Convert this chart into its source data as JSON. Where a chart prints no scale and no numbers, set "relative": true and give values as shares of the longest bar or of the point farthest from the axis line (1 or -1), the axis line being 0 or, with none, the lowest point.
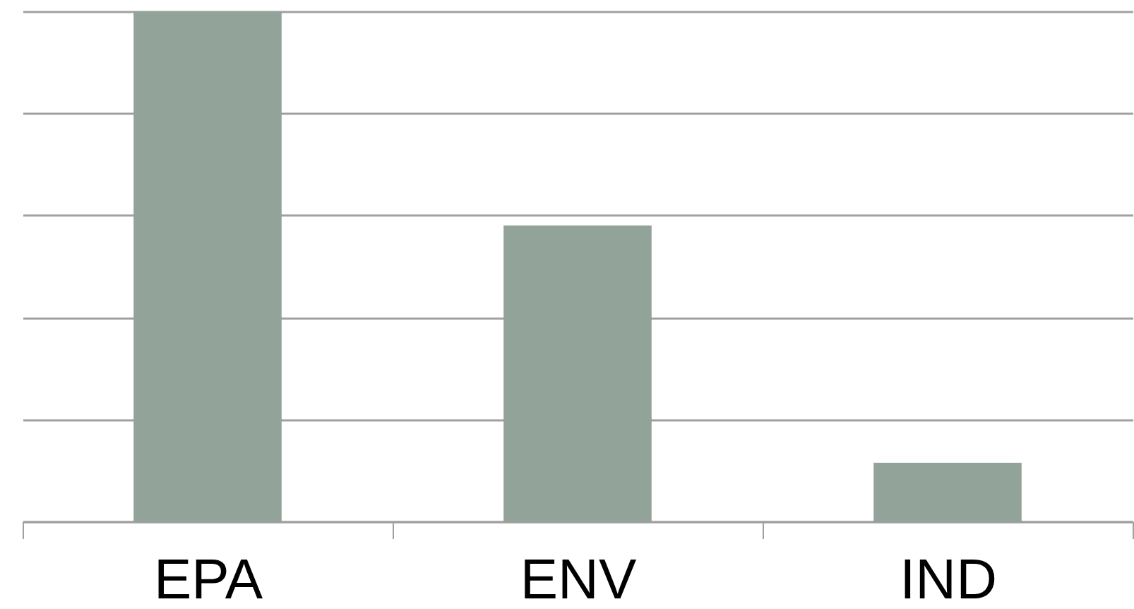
{
  "chart_data": {
    "type": "bar",
    "categories": [
      "EPA",
      "ENV",
      "IND"
    ],
    "values": [
      1,
      0.58,
      0.115
    ],
    "color": "#92a399",
    "relative": true,
    "grid": "y"
  }
}
